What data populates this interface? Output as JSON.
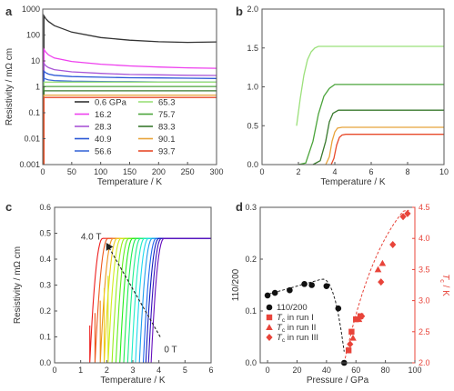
{
  "chart_data": [
    {
      "panel": "a",
      "type": "line",
      "xlabel": "Temperature / K",
      "ylabel": "Resistivity / mΩ cm",
      "xlim": [
        0,
        300
      ],
      "ylim": [
        0.001,
        1000
      ],
      "yscale": "log",
      "xticks": [
        "0",
        "50",
        "100",
        "150",
        "200",
        "250",
        "300"
      ],
      "yticks": [
        "0.001",
        "0.01",
        "0.1",
        "1",
        "10",
        "100",
        "1000"
      ],
      "legend_position": "bottom-left",
      "x": [
        2,
        5,
        10,
        20,
        50,
        100,
        150,
        200,
        250,
        300
      ],
      "series": [
        {
          "name": "0.6 GPa",
          "color": "#333333",
          "values": [
            550,
            430,
            330,
            230,
            130,
            80,
            63,
            55,
            52,
            54
          ]
        },
        {
          "name": "16.2",
          "color": "#ee40ee",
          "values": [
            28,
            22,
            17,
            13,
            9.5,
            7.5,
            6.4,
            5.8,
            5.4,
            5.2
          ]
        },
        {
          "name": "28.3",
          "color": "#a855d6",
          "values": [
            8,
            6.5,
            5.5,
            4.6,
            3.8,
            3.3,
            3.0,
            2.9,
            2.8,
            2.75
          ]
        },
        {
          "name": "40.9",
          "color": "#2b58d6",
          "values": [
            4.0,
            3.5,
            3.1,
            2.8,
            2.5,
            2.35,
            2.25,
            2.2,
            2.15,
            2.1
          ]
        },
        {
          "name": "56.6",
          "color": "#3d6bd8",
          "values": [
            2.2,
            2.0,
            1.85,
            1.75,
            1.65,
            1.6,
            1.58,
            1.55,
            1.53,
            1.52
          ]
        },
        {
          "name": "65.3",
          "color": "#9be07a",
          "values": [
            1.52,
            1.52,
            1.52,
            1.52,
            1.52,
            1.52,
            1.52,
            1.52,
            1.52,
            1.52
          ]
        },
        {
          "name": "75.7",
          "color": "#4ba43b",
          "values": [
            1.03,
            1.03,
            1.03,
            1.03,
            1.03,
            1.03,
            1.03,
            1.03,
            1.03,
            1.03
          ]
        },
        {
          "name": "83.3",
          "color": "#3a7a2e",
          "values": [
            0.7,
            0.7,
            0.7,
            0.7,
            0.7,
            0.7,
            0.7,
            0.7,
            0.7,
            0.7
          ]
        },
        {
          "name": "90.1",
          "color": "#e8a33a",
          "values": [
            0.48,
            0.48,
            0.48,
            0.48,
            0.48,
            0.48,
            0.48,
            0.48,
            0.48,
            0.48
          ]
        },
        {
          "name": "93.7",
          "color": "#e84a2a",
          "values": [
            0.39,
            0.39,
            0.39,
            0.39,
            0.39,
            0.39,
            0.39,
            0.39,
            0.39,
            0.39
          ]
        }
      ]
    },
    {
      "panel": "b",
      "type": "line",
      "xlabel": "Temperature / K",
      "ylabel": "",
      "xlim": [
        0,
        10
      ],
      "ylim": [
        0,
        2.0
      ],
      "xticks": [
        "0",
        "2",
        "4",
        "6",
        "8",
        "10"
      ],
      "yticks": [
        "0.0",
        "0.5",
        "1.0",
        "1.5",
        "2.0"
      ],
      "series": [
        {
          "name": "65.3",
          "color": "#9be07a",
          "x": [
            1.9,
            2.1,
            2.3,
            2.5,
            2.7,
            2.9,
            3.1,
            10
          ],
          "values": [
            0.5,
            0.85,
            1.15,
            1.35,
            1.45,
            1.5,
            1.52,
            1.52
          ]
        },
        {
          "name": "75.7",
          "color": "#4ba43b",
          "x": [
            2.0,
            2.4,
            2.8,
            3.1,
            3.4,
            3.7,
            4.0,
            10
          ],
          "values": [
            0.0,
            0.02,
            0.3,
            0.65,
            0.88,
            0.98,
            1.03,
            1.03
          ]
        },
        {
          "name": "83.3",
          "color": "#3a7a2e",
          "x": [
            2.8,
            3.2,
            3.5,
            3.7,
            3.9,
            4.2,
            10
          ],
          "values": [
            0.0,
            0.05,
            0.3,
            0.55,
            0.66,
            0.7,
            0.7
          ]
        },
        {
          "name": "90.1",
          "color": "#e8a33a",
          "x": [
            3.5,
            3.7,
            3.85,
            4.0,
            4.15,
            4.4,
            10
          ],
          "values": [
            0.0,
            0.1,
            0.3,
            0.42,
            0.47,
            0.48,
            0.48
          ]
        },
        {
          "name": "93.7",
          "color": "#e84a2a",
          "x": [
            3.8,
            3.95,
            4.1,
            4.25,
            4.4,
            4.6,
            10
          ],
          "values": [
            0.0,
            0.08,
            0.25,
            0.35,
            0.38,
            0.39,
            0.39
          ]
        }
      ]
    },
    {
      "panel": "c",
      "type": "line",
      "xlabel": "Temperature / K",
      "ylabel": "Resistivity / mΩ cm",
      "xlim": [
        0,
        6
      ],
      "ylim": [
        0,
        0.6
      ],
      "xticks": [
        "0",
        "1",
        "2",
        "3",
        "4",
        "5",
        "6"
      ],
      "yticks": [
        "0.0",
        "0.1",
        "0.2",
        "0.3",
        "0.4",
        "0.5",
        "0.6"
      ],
      "plateau": 0.48,
      "annotations": [
        "4.0 T",
        "0 T"
      ],
      "onset_field": [
        4.0,
        3.75,
        3.5,
        3.25,
        3.0,
        2.75,
        2.5,
        2.25,
        2.0,
        1.75,
        1.5,
        1.25,
        1.0,
        0.75,
        0.5,
        0.25,
        0.0
      ],
      "onset_temperature_K": [
        1.85,
        2.05,
        2.25,
        2.4,
        2.55,
        2.7,
        2.85,
        3.0,
        3.15,
        3.3,
        3.45,
        3.6,
        3.75,
        3.9,
        4.0,
        4.1,
        4.2
      ]
    },
    {
      "panel": "d",
      "type": "scatter",
      "xlabel": "Pressure / GPa",
      "ylabel_left": "110/200",
      "ylabel_right_italic": "T",
      "ylabel_right_sub": "c",
      "ylabel_right_unit": " / K",
      "xlim": [
        -5,
        100
      ],
      "ylim_left": [
        0,
        0.3
      ],
      "ylim_right": [
        2.0,
        4.5
      ],
      "xticks": [
        "0",
        "20",
        "40",
        "60",
        "80",
        "100"
      ],
      "yticks_left": [
        "0.0",
        "0.1",
        "0.2",
        "0.3"
      ],
      "yticks_right": [
        "2.0",
        "2.5",
        "3.0",
        "3.5",
        "4.0",
        "4.5"
      ],
      "legend_position": "bottom-left",
      "series": [
        {
          "name": "110/200",
          "marker": "circle",
          "color": "#111111",
          "axis": "left",
          "x": [
            0,
            5,
            15,
            25,
            30,
            40,
            48,
            52
          ],
          "values": [
            0.13,
            0.135,
            0.14,
            0.152,
            0.15,
            0.148,
            0.105,
            0.0
          ]
        },
        {
          "name_italic": "T",
          "name_sub": "c",
          "name_rest": " in run I",
          "marker": "square",
          "color": "#e8443a",
          "axis": "right",
          "x": [
            55,
            57,
            60,
            63
          ],
          "values": [
            2.2,
            2.5,
            2.7,
            2.75
          ]
        },
        {
          "name_italic": "T",
          "name_sub": "c",
          "name_rest": " in run II",
          "marker": "triangle",
          "color": "#e8443a",
          "axis": "right",
          "x": [
            58,
            62,
            75,
            78
          ],
          "values": [
            2.4,
            2.7,
            3.5,
            3.6
          ]
        },
        {
          "name_italic": "T",
          "name_sub": "c",
          "name_rest": " in run III",
          "marker": "diamond",
          "color": "#e8443a",
          "axis": "right",
          "x": [
            56,
            64,
            77,
            85,
            92,
            95
          ],
          "values": [
            2.3,
            2.75,
            3.3,
            3.9,
            4.35,
            4.4
          ]
        }
      ]
    }
  ],
  "panel_letters": [
    "a",
    "b",
    "c",
    "d"
  ]
}
